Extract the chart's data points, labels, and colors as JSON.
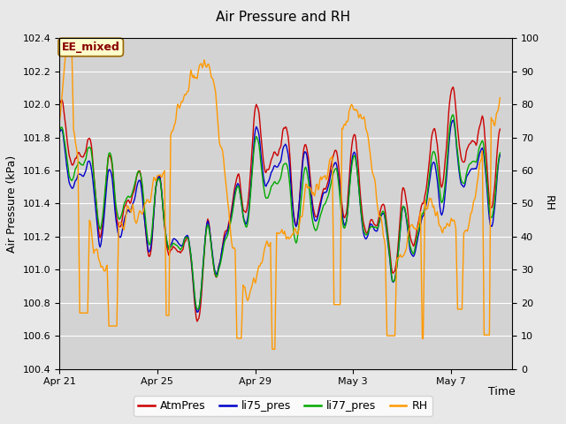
{
  "title": "Air Pressure and RH",
  "ylabel_left": "Air Pressure (kPa)",
  "ylabel_right": "RH",
  "xlabel": "Time",
  "annotation": "EE_mixed",
  "ylim_left": [
    100.4,
    102.4
  ],
  "ylim_right": [
    0,
    100
  ],
  "xtick_labels": [
    "Apr 21",
    "Apr 25",
    "Apr 29",
    "May 3",
    "May 7"
  ],
  "xtick_positions": [
    0,
    4,
    8,
    12,
    16
  ],
  "xlim": [
    0,
    18.5
  ],
  "ytick_left": [
    100.4,
    100.6,
    100.8,
    101.0,
    101.2,
    101.4,
    101.6,
    101.8,
    102.0,
    102.2,
    102.4
  ],
  "ytick_right": [
    0,
    10,
    20,
    30,
    40,
    50,
    60,
    70,
    80,
    90,
    100
  ],
  "colors": {
    "AtmPres": "#cc0000",
    "li75_pres": "#0000cc",
    "li77_pres": "#00aa00",
    "RH": "#ff9900"
  },
  "legend_labels": [
    "AtmPres",
    "li75_pres",
    "li77_pres",
    "RH"
  ],
  "bg_color": "#e8e8e8",
  "plot_bg_color": "#d3d3d3",
  "grid_color": "#ffffff",
  "annotation_bg": "#ffffcc",
  "annotation_border": "#996600",
  "annotation_text_color": "#880000",
  "title_fontsize": 11,
  "axis_fontsize": 9,
  "tick_fontsize": 8,
  "linewidth": 1.0
}
